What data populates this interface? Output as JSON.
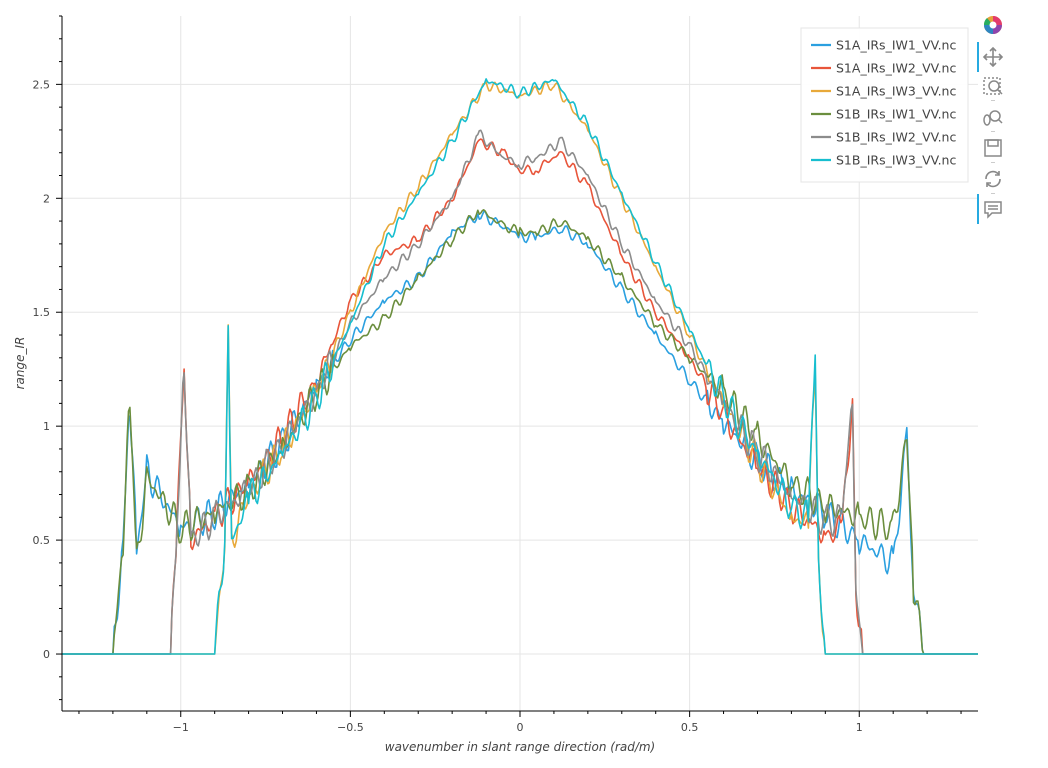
{
  "chart_data": {
    "type": "line",
    "xlabel": "wavenumber in slant range direction (rad/m)",
    "ylabel": "range_IR",
    "xlim": [
      -1.35,
      1.35
    ],
    "ylim": [
      -0.25,
      2.8
    ],
    "x_ticks": [
      -1,
      -0.5,
      0,
      0.5,
      1
    ],
    "x_tick_labels": [
      "−1",
      "−0.5",
      "0",
      "0.5",
      "1"
    ],
    "y_ticks": [
      0,
      0.5,
      1,
      1.5,
      2,
      2.5
    ],
    "y_tick_labels": [
      "0",
      "0.5",
      "1",
      "1.5",
      "2",
      "2.5"
    ],
    "grid": true,
    "legend_position": "top-right",
    "series": [
      {
        "name": "S1A_IRs_IW1_VV.nc",
        "color": "#2ba0e0",
        "points": [
          [
            -1.35,
            0
          ],
          [
            -1.2,
            0
          ],
          [
            -1.17,
            0.5
          ],
          [
            -1.15,
            1.12
          ],
          [
            -1.13,
            0.45
          ],
          [
            -1.1,
            0.8
          ],
          [
            -1.0,
            0.55
          ],
          [
            -0.9,
            0.62
          ],
          [
            -0.8,
            0.75
          ],
          [
            -0.7,
            0.92
          ],
          [
            -0.6,
            1.18
          ],
          [
            -0.5,
            1.38
          ],
          [
            -0.4,
            1.55
          ],
          [
            -0.3,
            1.65
          ],
          [
            -0.2,
            1.85
          ],
          [
            -0.12,
            1.93
          ],
          [
            -0.05,
            1.88
          ],
          [
            0.0,
            1.83
          ],
          [
            0.05,
            1.83
          ],
          [
            0.12,
            1.87
          ],
          [
            0.2,
            1.8
          ],
          [
            0.3,
            1.6
          ],
          [
            0.4,
            1.4
          ],
          [
            0.5,
            1.2
          ],
          [
            0.6,
            1.02
          ],
          [
            0.7,
            0.85
          ],
          [
            0.8,
            0.72
          ],
          [
            0.9,
            0.62
          ],
          [
            1.0,
            0.5
          ],
          [
            1.1,
            0.4
          ],
          [
            1.14,
            0.93
          ],
          [
            1.16,
            0.3
          ],
          [
            1.19,
            0
          ],
          [
            1.35,
            0
          ]
        ]
      },
      {
        "name": "S1A_IRs_IW2_VV.nc",
        "color": "#e8553a",
        "points": [
          [
            -1.35,
            0
          ],
          [
            -1.03,
            0
          ],
          [
            -1.01,
            0.6
          ],
          [
            -0.99,
            1.28
          ],
          [
            -0.97,
            0.5
          ],
          [
            -0.9,
            0.6
          ],
          [
            -0.8,
            0.75
          ],
          [
            -0.7,
            0.95
          ],
          [
            -0.6,
            1.2
          ],
          [
            -0.5,
            1.55
          ],
          [
            -0.4,
            1.75
          ],
          [
            -0.3,
            1.82
          ],
          [
            -0.2,
            2.0
          ],
          [
            -0.12,
            2.25
          ],
          [
            -0.05,
            2.2
          ],
          [
            0.0,
            2.12
          ],
          [
            0.05,
            2.13
          ],
          [
            0.12,
            2.2
          ],
          [
            0.2,
            2.05
          ],
          [
            0.3,
            1.75
          ],
          [
            0.4,
            1.5
          ],
          [
            0.5,
            1.3
          ],
          [
            0.6,
            1.05
          ],
          [
            0.7,
            0.82
          ],
          [
            0.8,
            0.65
          ],
          [
            0.9,
            0.52
          ],
          [
            0.95,
            0.55
          ],
          [
            0.98,
            1.12
          ],
          [
            0.99,
            0.3
          ],
          [
            1.01,
            0
          ],
          [
            1.35,
            0
          ]
        ]
      },
      {
        "name": "S1A_IRs_IW3_VV.nc",
        "color": "#e8a93a",
        "points": [
          [
            -1.35,
            0
          ],
          [
            -0.9,
            0
          ],
          [
            -0.87,
            0.5
          ],
          [
            -0.86,
            1.44
          ],
          [
            -0.85,
            0.5
          ],
          [
            -0.8,
            0.7
          ],
          [
            -0.7,
            0.9
          ],
          [
            -0.6,
            1.15
          ],
          [
            -0.5,
            1.5
          ],
          [
            -0.4,
            1.85
          ],
          [
            -0.3,
            2.05
          ],
          [
            -0.2,
            2.28
          ],
          [
            -0.1,
            2.5
          ],
          [
            0.0,
            2.45
          ],
          [
            0.1,
            2.5
          ],
          [
            0.2,
            2.3
          ],
          [
            0.3,
            2.0
          ],
          [
            0.4,
            1.7
          ],
          [
            0.5,
            1.4
          ],
          [
            0.6,
            1.1
          ],
          [
            0.7,
            0.85
          ],
          [
            0.8,
            0.6
          ],
          [
            0.85,
            0.58
          ],
          [
            0.87,
            1.25
          ],
          [
            0.88,
            0.4
          ],
          [
            0.9,
            0
          ],
          [
            1.35,
            0
          ]
        ]
      },
      {
        "name": "S1B_IRs_IW1_VV.nc",
        "color": "#6b8e3e",
        "points": [
          [
            -1.35,
            0
          ],
          [
            -1.2,
            0
          ],
          [
            -1.17,
            0.5
          ],
          [
            -1.15,
            1.12
          ],
          [
            -1.13,
            0.4
          ],
          [
            -1.1,
            0.78
          ],
          [
            -1.0,
            0.55
          ],
          [
            -0.9,
            0.62
          ],
          [
            -0.8,
            0.72
          ],
          [
            -0.7,
            0.9
          ],
          [
            -0.6,
            1.15
          ],
          [
            -0.5,
            1.35
          ],
          [
            -0.4,
            1.47
          ],
          [
            -0.3,
            1.65
          ],
          [
            -0.2,
            1.82
          ],
          [
            -0.12,
            1.95
          ],
          [
            -0.05,
            1.88
          ],
          [
            0.0,
            1.85
          ],
          [
            0.05,
            1.85
          ],
          [
            0.12,
            1.9
          ],
          [
            0.2,
            1.82
          ],
          [
            0.3,
            1.65
          ],
          [
            0.4,
            1.45
          ],
          [
            0.5,
            1.3
          ],
          [
            0.6,
            1.15
          ],
          [
            0.7,
            0.95
          ],
          [
            0.8,
            0.75
          ],
          [
            0.9,
            0.65
          ],
          [
            1.0,
            0.6
          ],
          [
            1.1,
            0.55
          ],
          [
            1.14,
            0.95
          ],
          [
            1.16,
            0.3
          ],
          [
            1.19,
            0
          ],
          [
            1.35,
            0
          ]
        ]
      },
      {
        "name": "S1B_IRs_IW2_VV.nc",
        "color": "#8c8c8c",
        "points": [
          [
            -1.35,
            0
          ],
          [
            -1.03,
            0
          ],
          [
            -1.01,
            0.6
          ],
          [
            -0.99,
            1.28
          ],
          [
            -0.97,
            0.5
          ],
          [
            -0.9,
            0.6
          ],
          [
            -0.8,
            0.72
          ],
          [
            -0.7,
            0.92
          ],
          [
            -0.6,
            1.15
          ],
          [
            -0.5,
            1.45
          ],
          [
            -0.4,
            1.65
          ],
          [
            -0.3,
            1.8
          ],
          [
            -0.2,
            2.0
          ],
          [
            -0.12,
            2.28
          ],
          [
            -0.05,
            2.18
          ],
          [
            0.0,
            2.15
          ],
          [
            0.05,
            2.18
          ],
          [
            0.12,
            2.25
          ],
          [
            0.2,
            2.1
          ],
          [
            0.3,
            1.8
          ],
          [
            0.4,
            1.55
          ],
          [
            0.5,
            1.35
          ],
          [
            0.6,
            1.1
          ],
          [
            0.7,
            0.88
          ],
          [
            0.8,
            0.7
          ],
          [
            0.9,
            0.58
          ],
          [
            0.95,
            0.6
          ],
          [
            0.98,
            1.14
          ],
          [
            0.99,
            0.3
          ],
          [
            1.01,
            0
          ],
          [
            1.35,
            0
          ]
        ]
      },
      {
        "name": "S1B_IRs_IW3_VV.nc",
        "color": "#17becf",
        "points": [
          [
            -1.35,
            0
          ],
          [
            -0.9,
            0
          ],
          [
            -0.87,
            0.5
          ],
          [
            -0.86,
            1.42
          ],
          [
            -0.85,
            0.5
          ],
          [
            -0.8,
            0.68
          ],
          [
            -0.7,
            0.88
          ],
          [
            -0.6,
            1.12
          ],
          [
            -0.5,
            1.45
          ],
          [
            -0.4,
            1.8
          ],
          [
            -0.3,
            2.02
          ],
          [
            -0.2,
            2.25
          ],
          [
            -0.1,
            2.52
          ],
          [
            0.0,
            2.46
          ],
          [
            0.1,
            2.52
          ],
          [
            0.2,
            2.32
          ],
          [
            0.3,
            2.02
          ],
          [
            0.4,
            1.72
          ],
          [
            0.5,
            1.42
          ],
          [
            0.6,
            1.12
          ],
          [
            0.7,
            0.88
          ],
          [
            0.8,
            0.65
          ],
          [
            0.85,
            0.6
          ],
          [
            0.87,
            1.3
          ],
          [
            0.88,
            0.4
          ],
          [
            0.9,
            0
          ],
          [
            1.35,
            0
          ]
        ]
      }
    ]
  },
  "toolbar": {
    "tools": [
      {
        "name": "bokeh-logo-icon",
        "active": false
      },
      {
        "name": "pan-icon",
        "active": true
      },
      {
        "name": "box-zoom-icon",
        "active": false
      },
      {
        "name": "wheel-zoom-icon",
        "active": false
      },
      {
        "name": "save-icon",
        "active": false
      },
      {
        "name": "reset-icon",
        "active": false
      },
      {
        "name": "hover-icon",
        "active": true
      }
    ]
  }
}
